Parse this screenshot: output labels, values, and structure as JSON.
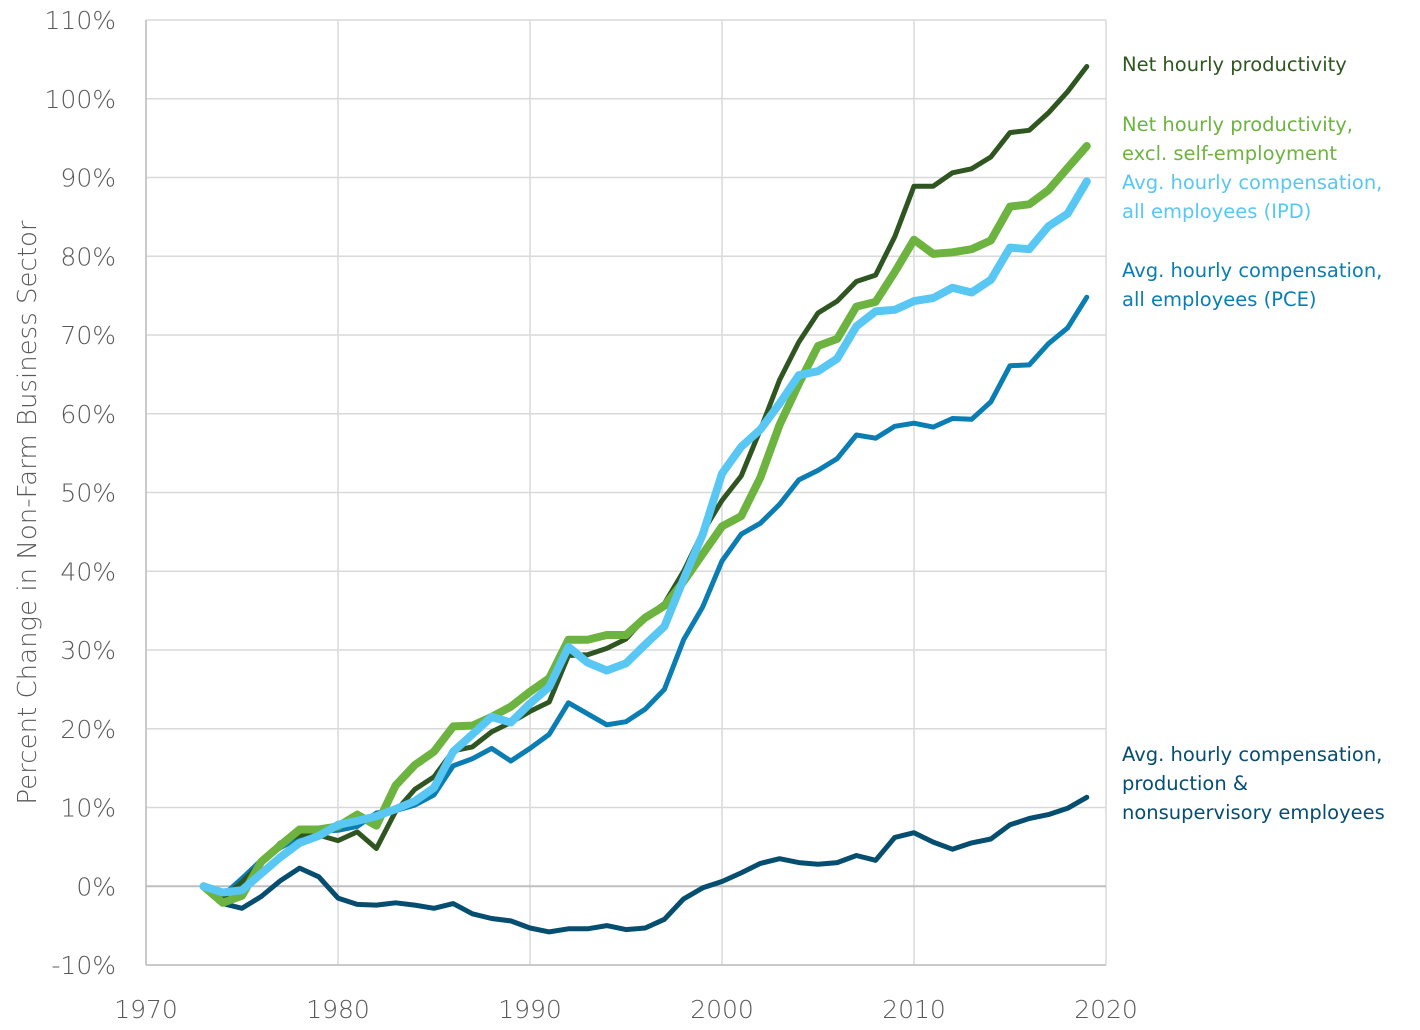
{
  "chart_data": {
    "type": "line",
    "title": "",
    "xlabel": "",
    "ylabel": "Percent Change in Non-Farm Business Sector",
    "xlim": [
      1970,
      2020
    ],
    "ylim": [
      -10,
      110
    ],
    "x_ticks": [
      {
        "value": 1970,
        "label": "1970"
      },
      {
        "value": 1980,
        "label": "1980"
      },
      {
        "value": 1990,
        "label": "1990"
      },
      {
        "value": 2000,
        "label": "2000"
      },
      {
        "value": 2010,
        "label": "2010"
      },
      {
        "value": 2020,
        "label": "2020"
      }
    ],
    "y_ticks": [
      {
        "value": -10,
        "label": "-10%"
      },
      {
        "value": 0,
        "label": "0%"
      },
      {
        "value": 10,
        "label": "10%"
      },
      {
        "value": 20,
        "label": "20%"
      },
      {
        "value": 30,
        "label": "30%"
      },
      {
        "value": 40,
        "label": "40%"
      },
      {
        "value": 50,
        "label": "50%"
      },
      {
        "value": 60,
        "label": "60%"
      },
      {
        "value": 70,
        "label": "70%"
      },
      {
        "value": 80,
        "label": "80%"
      },
      {
        "value": 90,
        "label": "90%"
      },
      {
        "value": 100,
        "label": "100%"
      },
      {
        "value": 110,
        "label": "110%"
      }
    ],
    "grid": true,
    "legend_placement": "right",
    "x": [
      1973,
      1974,
      1975,
      1976,
      1977,
      1978,
      1979,
      1980,
      1981,
      1982,
      1983,
      1984,
      1985,
      1986,
      1987,
      1988,
      1989,
      1990,
      1991,
      1992,
      1993,
      1994,
      1995,
      1996,
      1997,
      1998,
      1999,
      2000,
      2001,
      2002,
      2003,
      2004,
      2005,
      2006,
      2007,
      2008,
      2009,
      2010,
      2011,
      2012,
      2013,
      2014,
      2015,
      2016,
      2017,
      2018,
      2019
    ],
    "series": [
      {
        "name": "Net hourly productivity",
        "label_lines": [
          "Net hourly productivity"
        ],
        "color": "#2f5620",
        "width": 5,
        "values": [
          0,
          -1.5,
          0.5,
          3,
          5.5,
          6.5,
          6.5,
          5.8,
          6.9,
          4.8,
          9.5,
          12.3,
          13.9,
          17.2,
          17.7,
          19.6,
          20.8,
          22.2,
          23.4,
          29.3,
          29.4,
          30.2,
          31.4,
          34.1,
          35.9,
          40.0,
          45.0,
          49.0,
          52.1,
          58.0,
          64.3,
          69.1,
          72.8,
          74.3,
          76.8,
          77.6,
          82.5,
          88.9,
          88.9,
          90.6,
          91.1,
          92.6,
          95.7,
          96.0,
          98.2,
          100.9,
          104.1
        ]
      },
      {
        "name": "Net hourly productivity, excl. self-employment",
        "label_lines": [
          "Net hourly productivity,",
          "excl. self-employment"
        ],
        "color": "#6db33f",
        "width": 8,
        "values": [
          0,
          -2.1,
          -1.2,
          3.1,
          5.2,
          7.2,
          7.2,
          7.6,
          9.1,
          7.7,
          12.8,
          15.4,
          17.1,
          20.3,
          20.4,
          21.5,
          22.8,
          24.7,
          26.4,
          31.3,
          31.3,
          31.9,
          31.9,
          34.1,
          35.6,
          38.7,
          42.2,
          45.7,
          47.0,
          51.9,
          58.6,
          63.8,
          68.6,
          69.5,
          73.6,
          74.2,
          78.0,
          82.1,
          80.3,
          80.5,
          80.9,
          82.0,
          86.3,
          86.6,
          88.4,
          91.2,
          94.0
        ]
      },
      {
        "name": "Avg. hourly compensation, all employees (IPD)",
        "label_lines": [
          "Avg. hourly compensation,",
          "all employees (IPD)"
        ],
        "color": "#58c7f3",
        "width": 8,
        "values": [
          0,
          -0.8,
          -0.5,
          1.6,
          3.7,
          5.5,
          6.4,
          7.8,
          8.3,
          8.9,
          9.8,
          10.8,
          12.5,
          17.1,
          19.3,
          21.5,
          20.8,
          23.2,
          25.3,
          30.4,
          28.4,
          27.4,
          28.3,
          30.7,
          33.0,
          39.0,
          44.7,
          52.4,
          55.8,
          58.0,
          61.3,
          64.9,
          65.4,
          67.0,
          71.1,
          73.0,
          73.2,
          74.3,
          74.7,
          76.0,
          75.4,
          77.0,
          81.1,
          80.9,
          83.8,
          85.4,
          89.5
        ]
      },
      {
        "name": "Avg. hourly compensation, all employees (PCE)",
        "label_lines": [
          "Avg. hourly compensation,",
          "all employees (PCE)"
        ],
        "color": "#0a7db3",
        "width": 5,
        "values": [
          0,
          -1.2,
          1.0,
          3.3,
          4.9,
          6.2,
          7.0,
          7.1,
          7.6,
          9.3,
          9.6,
          10.3,
          11.6,
          15.3,
          16.2,
          17.5,
          15.9,
          17.5,
          19.3,
          23.3,
          21.9,
          20.5,
          20.9,
          22.5,
          25.0,
          31.3,
          35.5,
          41.3,
          44.7,
          46.1,
          48.5,
          51.6,
          52.8,
          54.3,
          57.3,
          56.9,
          58.4,
          58.8,
          58.3,
          59.4,
          59.3,
          61.5,
          66.1,
          66.2,
          68.9,
          70.9,
          74.8
        ]
      },
      {
        "name": "Avg. hourly compensation, production & nonsupervisory employees",
        "label_lines": [
          "Avg. hourly compensation,",
          "production &",
          "nonsupervisory employees"
        ],
        "color": "#064e70",
        "width": 5,
        "values": [
          0,
          -2.2,
          -2.8,
          -1.3,
          0.7,
          2.3,
          1.2,
          -1.5,
          -2.3,
          -2.4,
          -2.1,
          -2.4,
          -2.8,
          -2.2,
          -3.5,
          -4.1,
          -4.4,
          -5.3,
          -5.8,
          -5.4,
          -5.4,
          -5.0,
          -5.5,
          -5.3,
          -4.2,
          -1.6,
          -0.2,
          0.6,
          1.7,
          2.9,
          3.5,
          3.0,
          2.8,
          3.0,
          3.9,
          3.3,
          6.2,
          6.8,
          5.6,
          4.7,
          5.5,
          6.0,
          7.8,
          8.6,
          9.1,
          9.9,
          11.3
        ]
      }
    ]
  }
}
